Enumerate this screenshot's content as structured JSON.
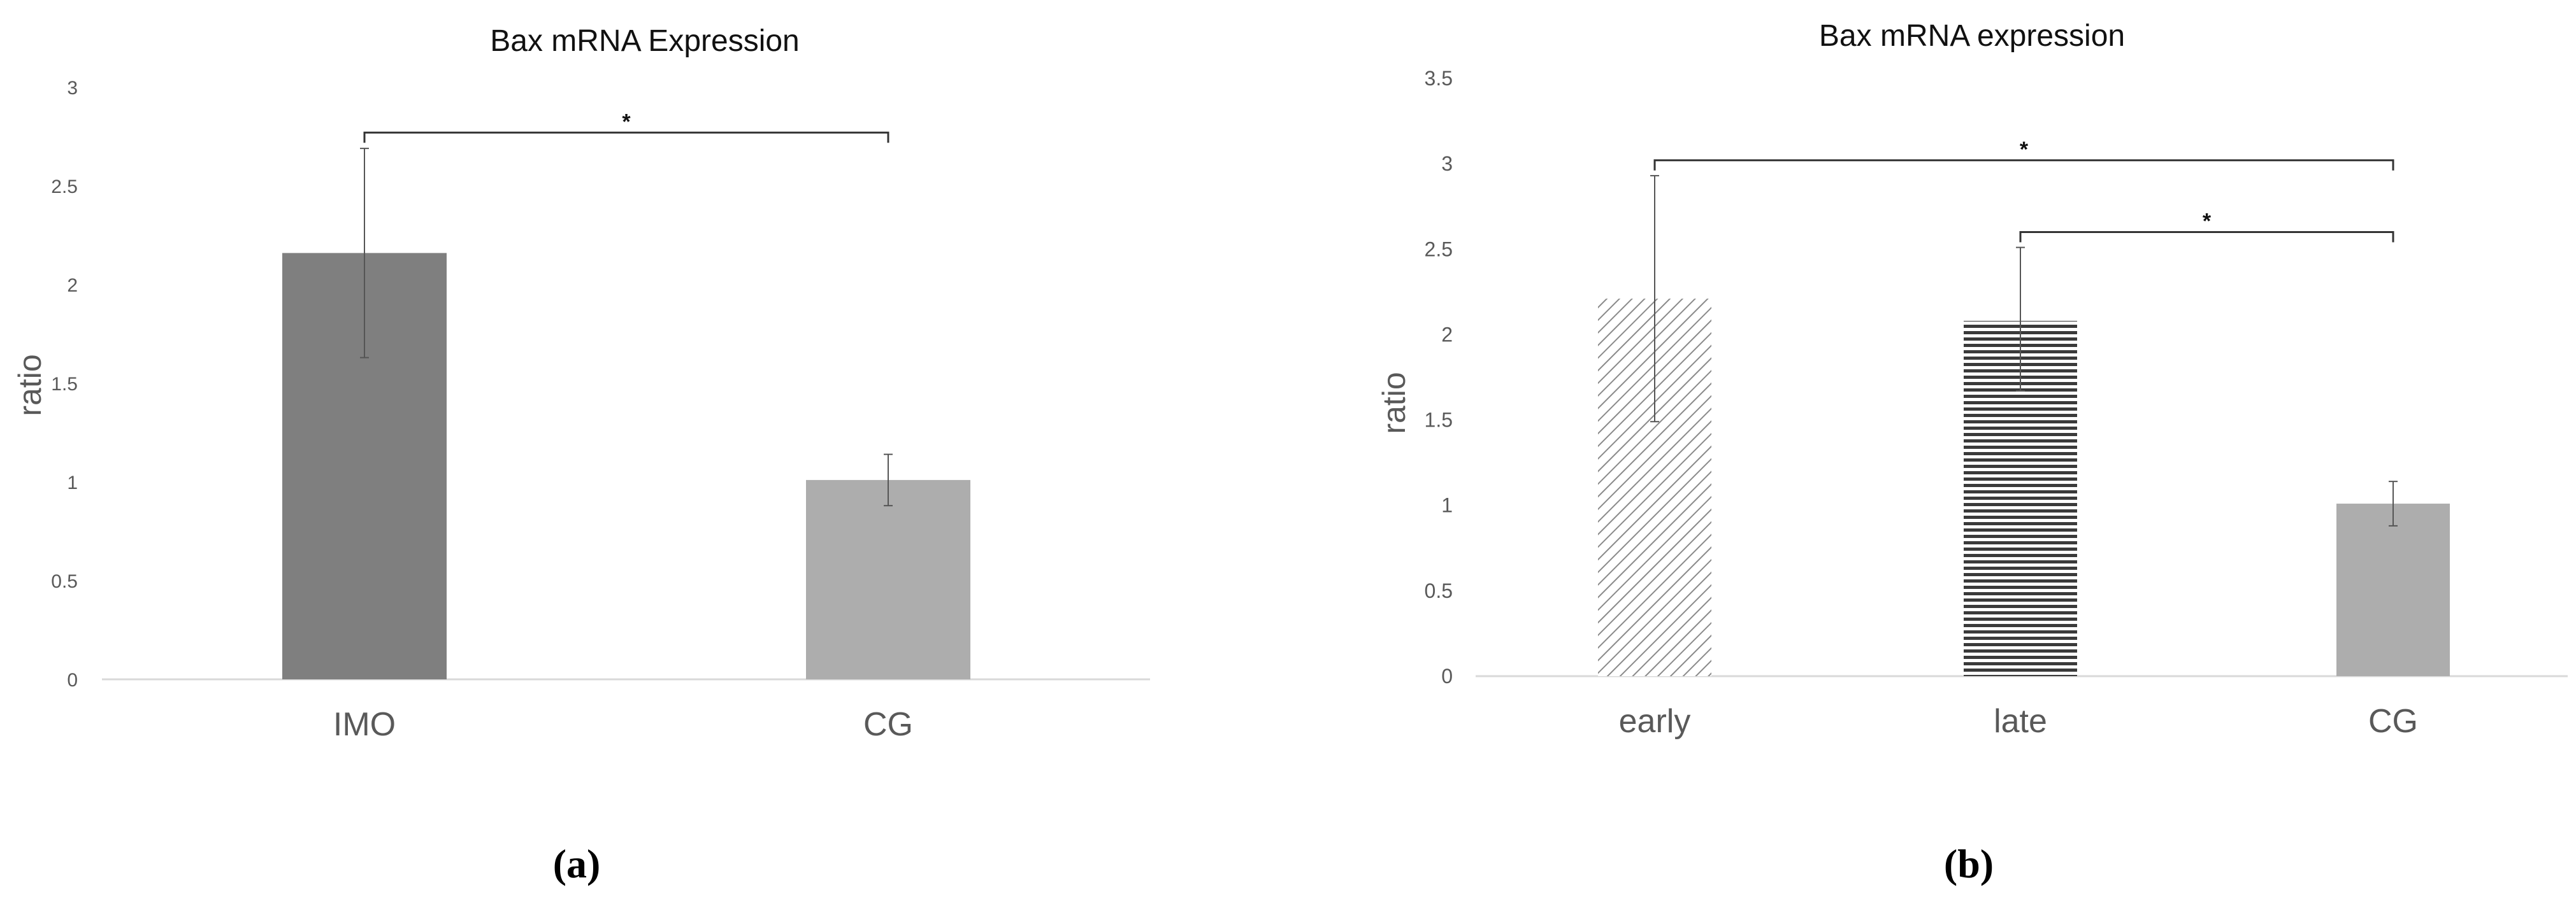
{
  "colors": {
    "dark_bar": "#7f7f7f",
    "light_bar": "#adadad",
    "hatch": "#8a8a8a",
    "stripe": "#3a3a3a",
    "axis": "#d9d9d9",
    "text": "#595959",
    "title": "#111111",
    "error": "#555555"
  },
  "chart_data": [
    {
      "type": "bar",
      "panel_label": "(a)",
      "title": "Bax mRNA Expression",
      "xlabel": "",
      "ylabel": "ratio",
      "ylim": [
        0,
        3
      ],
      "yticks": [
        "0",
        "0.5",
        "1",
        "1.5",
        "2",
        "2.5",
        "3"
      ],
      "categories": [
        "IMO",
        "CG"
      ],
      "values": [
        2.16,
        1.01
      ],
      "error_bars": [
        [
          1.63,
          2.69
        ],
        [
          0.88,
          1.14
        ]
      ],
      "bar_styles": [
        "dark",
        "light"
      ],
      "grid": false,
      "legend": "none",
      "significance": [
        {
          "from": 0,
          "to": 1,
          "label": "*",
          "y": 2.77
        }
      ]
    },
    {
      "type": "bar",
      "panel_label": "(b)",
      "title": "Bax mRNA expression",
      "xlabel": "",
      "ylabel": "ratio",
      "ylim": [
        0,
        3.5
      ],
      "yticks": [
        "0",
        "0.5",
        "1",
        "1.5",
        "2",
        "2.5",
        "3",
        "3.5"
      ],
      "categories": [
        "early",
        "late",
        "CG"
      ],
      "values": [
        2.21,
        2.08,
        1.01
      ],
      "error_bars": [
        [
          1.49,
          2.93
        ],
        [
          1.67,
          2.51
        ],
        [
          0.88,
          1.14
        ]
      ],
      "bar_styles": [
        "diagonal-hatch",
        "horizontal-stripes",
        "light"
      ],
      "grid": false,
      "legend": "none",
      "significance": [
        {
          "from": 0,
          "to": 2,
          "label": "*",
          "y": 3.02
        },
        {
          "from": 1,
          "to": 2,
          "label": "*",
          "y": 2.6
        }
      ]
    }
  ]
}
